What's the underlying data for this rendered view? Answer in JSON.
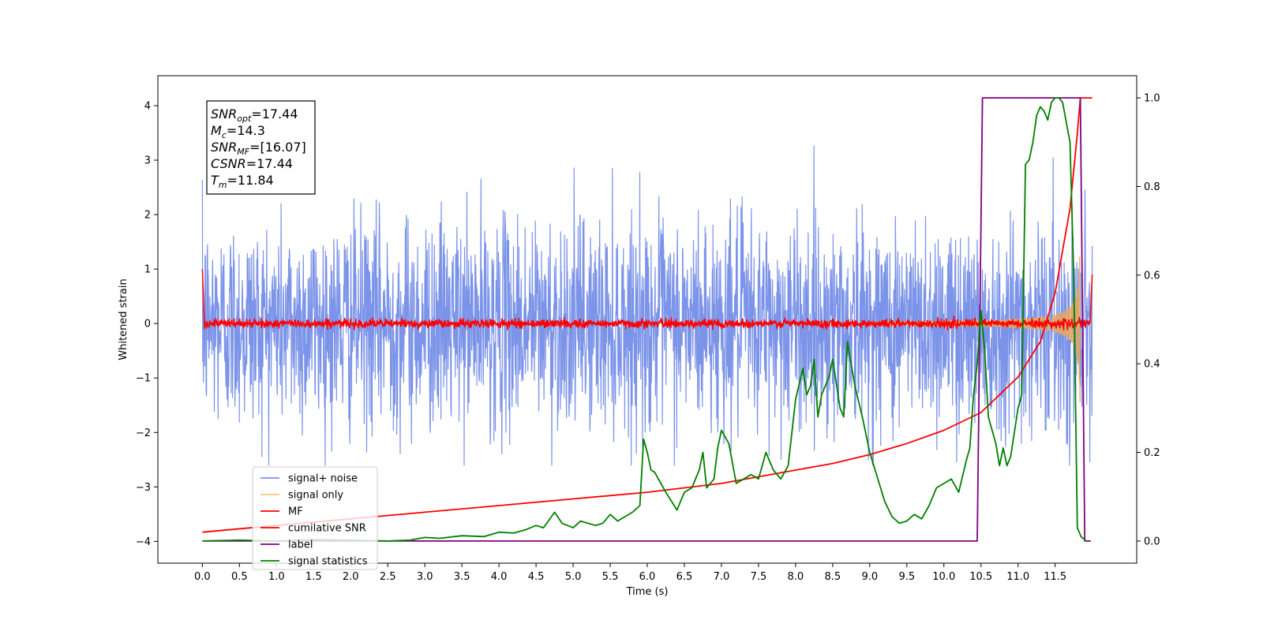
{
  "chart_data": {
    "type": "line",
    "xlabel": "Time (s)",
    "ylabel": "Whitened strain",
    "xlim": [
      -0.6,
      12.6
    ],
    "ylim_left": [
      -4.4,
      4.55
    ],
    "ylim_right": [
      -0.05,
      1.05
    ],
    "xticks": [
      "0.0",
      "0.5",
      "1.0",
      "1.5",
      "2.0",
      "2.5",
      "3.0",
      "3.5",
      "4.0",
      "4.5",
      "5.0",
      "5.5",
      "6.0",
      "6.5",
      "7.0",
      "7.5",
      "8.0",
      "8.5",
      "9.0",
      "9.5",
      "10.0",
      "10.5",
      "11.0",
      "11.5"
    ],
    "yticks_left": [
      "4",
      "3",
      "2",
      "1",
      "0",
      "−1",
      "−2",
      "−3",
      "−4"
    ],
    "yticks_right": [
      "1.0",
      "0.8",
      "0.6",
      "0.4",
      "0.2",
      "0.0"
    ],
    "legend_position": "lower-left",
    "legend": [
      "signal+ noise",
      "signal only",
      "MF",
      "cumilative SNR",
      "label",
      "signal statistics"
    ],
    "annotation": {
      "lines": [
        {
          "base": "SNR",
          "sub": "opt",
          "rest": "=17.44"
        },
        {
          "base": "M",
          "sub": "c",
          "rest": "=14.3"
        },
        {
          "base": "SNR",
          "sub": "MF",
          "rest": "=[16.07]"
        },
        {
          "base": "CSNR",
          "sub": "",
          "rest": "=17.44"
        },
        {
          "base": "T",
          "sub": "m",
          "rest": "=11.84"
        }
      ]
    },
    "series": [
      {
        "name": "signal+ noise",
        "axis": "left",
        "color": "#7b93e8",
        "noise_std": 1.0,
        "range": [
          -2.6,
          4.1
        ],
        "t_start": 0.0,
        "t_end": 12.0
      },
      {
        "name": "signal only",
        "axis": "left",
        "color": "#e8a85a",
        "peak_amplitude": 1.8,
        "t_merger": 11.84
      },
      {
        "name": "MF",
        "axis": "left",
        "color": "#ff0000",
        "baseline": 0.0,
        "spike_at_start": 1.0,
        "spike_at_end": 0.9
      },
      {
        "name": "cumilative SNR",
        "axis": "right",
        "color": "#ff0000",
        "x": [
          0.0,
          1.0,
          2.0,
          3.0,
          4.0,
          5.0,
          6.0,
          7.0,
          8.0,
          8.5,
          9.0,
          9.5,
          10.0,
          10.5,
          11.0,
          11.3,
          11.5,
          11.7,
          11.8,
          11.84,
          12.0
        ],
        "values": [
          0.02,
          0.035,
          0.05,
          0.065,
          0.08,
          0.095,
          0.11,
          0.13,
          0.16,
          0.175,
          0.195,
          0.22,
          0.25,
          0.29,
          0.37,
          0.45,
          0.56,
          0.75,
          0.92,
          1.0,
          1.0
        ]
      },
      {
        "name": "label",
        "axis": "right",
        "color": "#800080",
        "x": [
          0.0,
          10.45,
          10.52,
          11.84,
          11.9,
          11.98
        ],
        "values": [
          0.0,
          0.0,
          1.0,
          1.0,
          0.0,
          0.0
        ]
      },
      {
        "name": "signal statistics",
        "axis": "right",
        "color": "#008000",
        "x": [
          0.0,
          0.5,
          1.0,
          1.5,
          2.0,
          2.5,
          2.8,
          3.0,
          3.2,
          3.5,
          3.8,
          4.0,
          4.2,
          4.35,
          4.5,
          4.6,
          4.75,
          4.85,
          5.0,
          5.1,
          5.3,
          5.4,
          5.5,
          5.6,
          5.7,
          5.8,
          5.9,
          5.95,
          6.0,
          6.05,
          6.1,
          6.15,
          6.25,
          6.4,
          6.5,
          6.6,
          6.7,
          6.75,
          6.8,
          6.9,
          6.95,
          7.0,
          7.1,
          7.2,
          7.3,
          7.4,
          7.5,
          7.6,
          7.7,
          7.8,
          7.9,
          8.0,
          8.1,
          8.15,
          8.2,
          8.25,
          8.3,
          8.35,
          8.45,
          8.5,
          8.6,
          8.65,
          8.7,
          8.8,
          8.9,
          9.0,
          9.2,
          9.3,
          9.4,
          9.5,
          9.6,
          9.7,
          9.8,
          9.9,
          10.0,
          10.1,
          10.2,
          10.3,
          10.35,
          10.4,
          10.45,
          10.5,
          10.55,
          10.6,
          10.7,
          10.75,
          10.8,
          10.85,
          10.9,
          11.0,
          11.05,
          11.1,
          11.15,
          11.2,
          11.25,
          11.3,
          11.35,
          11.4,
          11.45,
          11.5,
          11.55,
          11.6,
          11.7,
          11.75,
          11.8,
          11.85,
          11.92
        ],
        "values": [
          0.0,
          0.002,
          0.0,
          0.003,
          0.002,
          0.0,
          0.002,
          0.008,
          0.006,
          0.012,
          0.01,
          0.02,
          0.018,
          0.025,
          0.035,
          0.03,
          0.065,
          0.04,
          0.03,
          0.045,
          0.035,
          0.04,
          0.06,
          0.045,
          0.055,
          0.065,
          0.08,
          0.23,
          0.2,
          0.16,
          0.155,
          0.14,
          0.11,
          0.07,
          0.11,
          0.12,
          0.16,
          0.2,
          0.12,
          0.14,
          0.21,
          0.25,
          0.22,
          0.13,
          0.14,
          0.15,
          0.14,
          0.2,
          0.16,
          0.14,
          0.17,
          0.32,
          0.39,
          0.33,
          0.35,
          0.41,
          0.28,
          0.33,
          0.37,
          0.41,
          0.3,
          0.28,
          0.45,
          0.35,
          0.28,
          0.2,
          0.09,
          0.055,
          0.04,
          0.045,
          0.06,
          0.05,
          0.08,
          0.12,
          0.13,
          0.14,
          0.11,
          0.18,
          0.21,
          0.33,
          0.4,
          0.52,
          0.43,
          0.28,
          0.22,
          0.17,
          0.21,
          0.17,
          0.19,
          0.3,
          0.33,
          0.85,
          0.86,
          0.9,
          0.96,
          0.98,
          0.97,
          0.95,
          0.99,
          1.0,
          1.0,
          0.99,
          0.9,
          0.6,
          0.03,
          0.01,
          0.0
        ]
      }
    ]
  }
}
